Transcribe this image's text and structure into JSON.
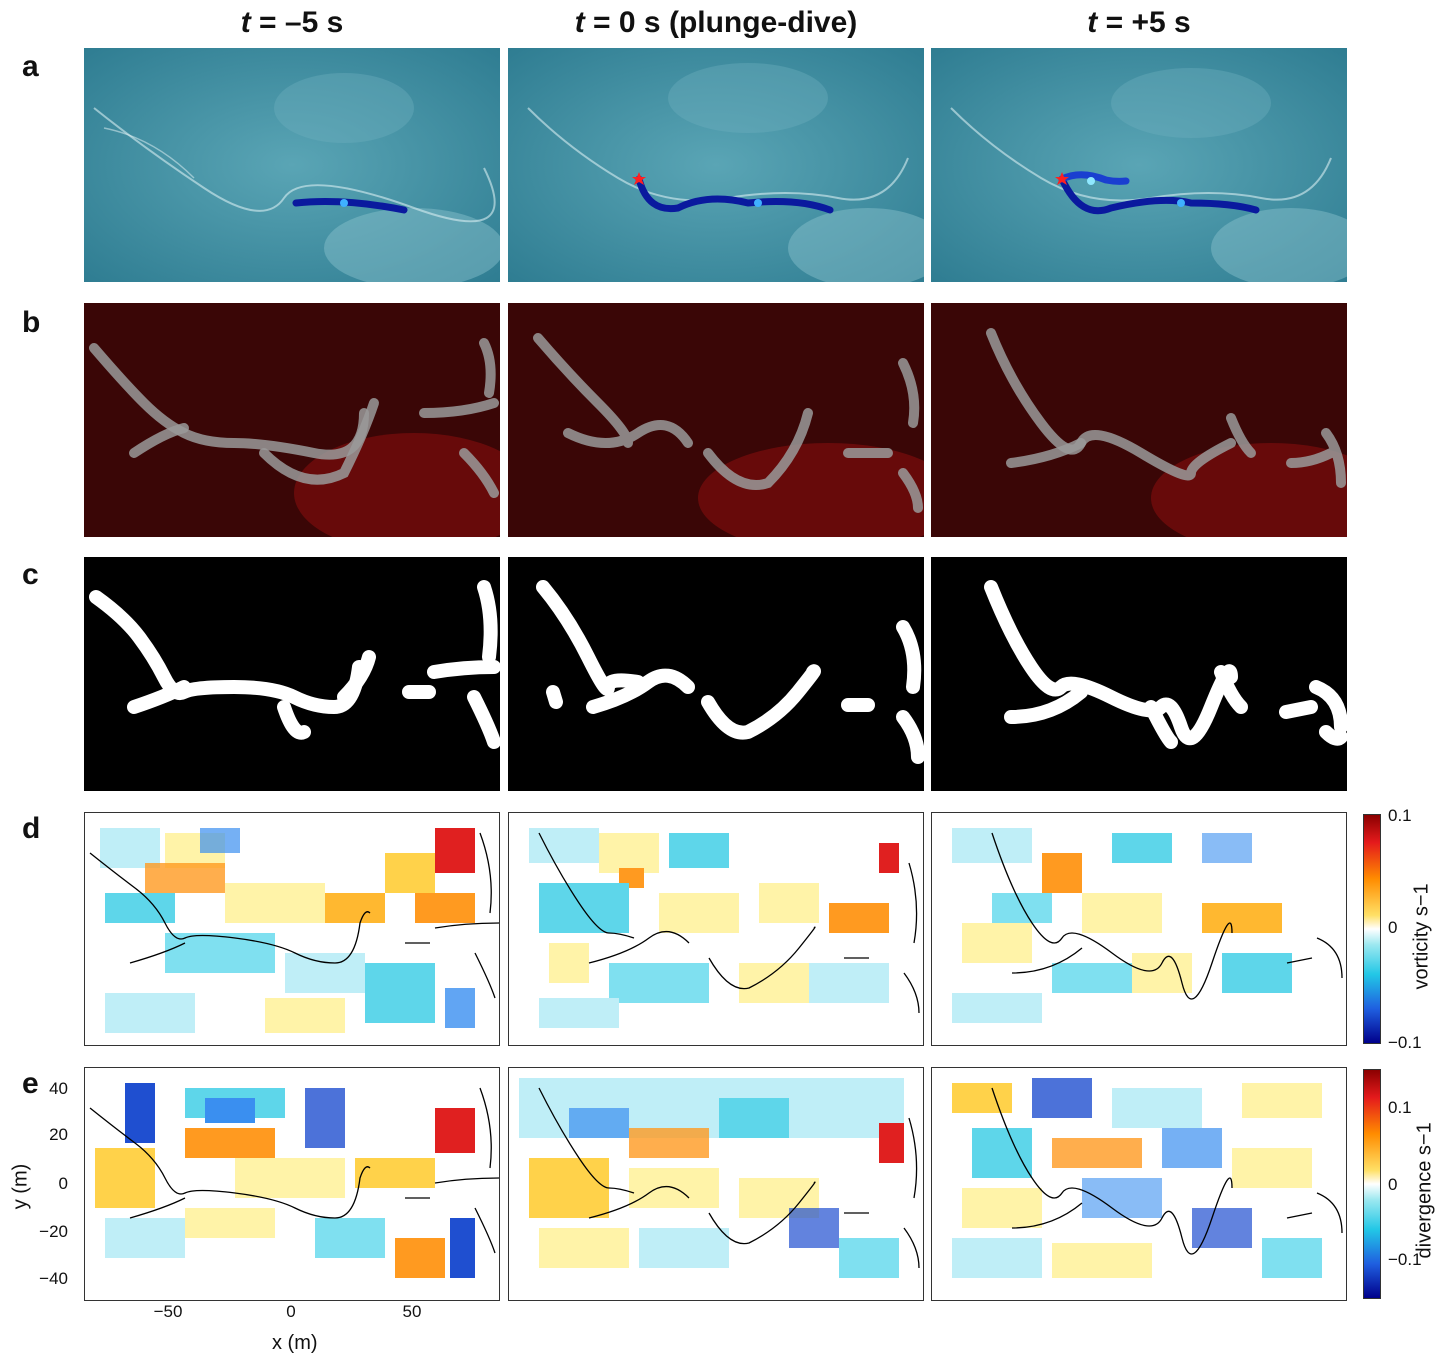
{
  "columns": [
    {
      "t": "t",
      "rest": " = –5 s"
    },
    {
      "t": "t",
      "rest": " = 0 s (plunge-dive)"
    },
    {
      "t": "t",
      "rest": " = +5 s"
    }
  ],
  "rows": [
    "a",
    "b",
    "c",
    "d",
    "e"
  ],
  "vorticity_colorbar": {
    "title": "vorticity s−1",
    "ticks": [
      "0.1",
      "0",
      "−0.1"
    ]
  },
  "divergence_colorbar": {
    "title": "divergence s−1",
    "ticks": [
      "0.1",
      "0",
      "−0.1"
    ]
  },
  "axes": {
    "ylabel": "y (m)",
    "xlabel": "x (m)",
    "yticks": [
      "40",
      "20",
      "0",
      "−20",
      "−40"
    ],
    "xticks": [
      "−50",
      "0",
      "50"
    ]
  },
  "colors": {
    "ocean": "#3f8fa3",
    "foam_red": "#5a0a0a",
    "track": "#0a1a9e",
    "star": "#ff2020"
  }
}
